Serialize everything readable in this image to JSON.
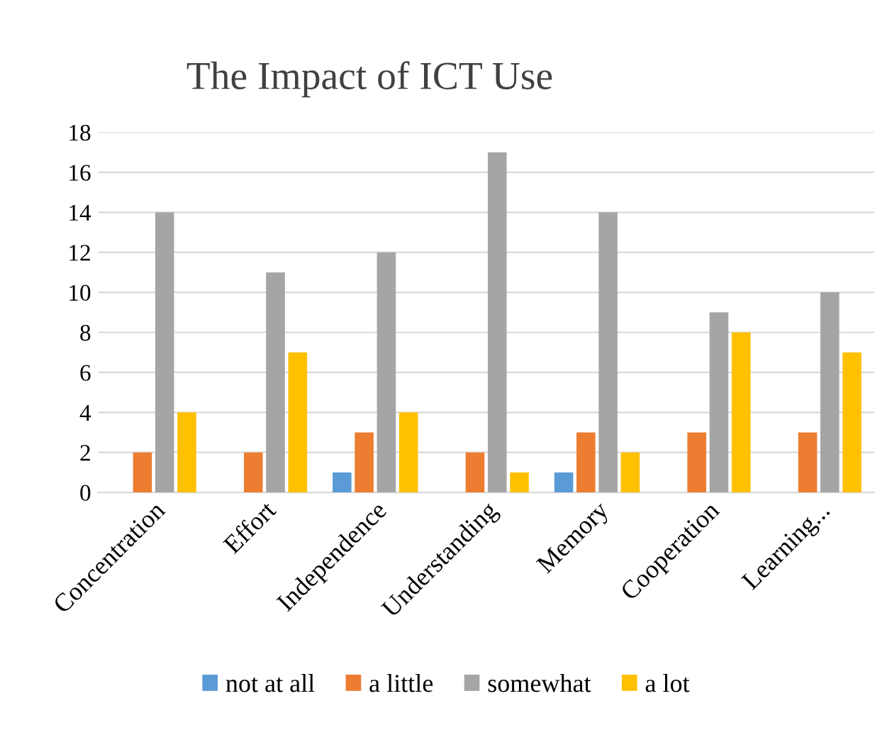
{
  "chart_data": {
    "type": "bar",
    "title": "The Impact of ICT Use",
    "categories": [
      "Concentration",
      "Effort",
      "Independence",
      "Understanding",
      "Memory",
      "Cooperation",
      "Learning..."
    ],
    "series": [
      {
        "name": "not at all",
        "color": "#5b9bd5",
        "values": [
          0,
          0,
          1,
          0,
          1,
          0,
          0
        ]
      },
      {
        "name": "a little",
        "color": "#ed7d31",
        "values": [
          2,
          2,
          3,
          2,
          3,
          3,
          3
        ]
      },
      {
        "name": "somewhat",
        "color": "#a5a5a5",
        "values": [
          14,
          11,
          12,
          17,
          14,
          9,
          10
        ]
      },
      {
        "name": "a lot",
        "color": "#ffc000",
        "values": [
          4,
          7,
          4,
          1,
          2,
          8,
          7
        ]
      }
    ],
    "ylim": [
      0,
      18
    ],
    "yticks": [
      0,
      2,
      4,
      6,
      8,
      10,
      12,
      14,
      16,
      18
    ],
    "grid": "y",
    "legend": "bottom"
  }
}
